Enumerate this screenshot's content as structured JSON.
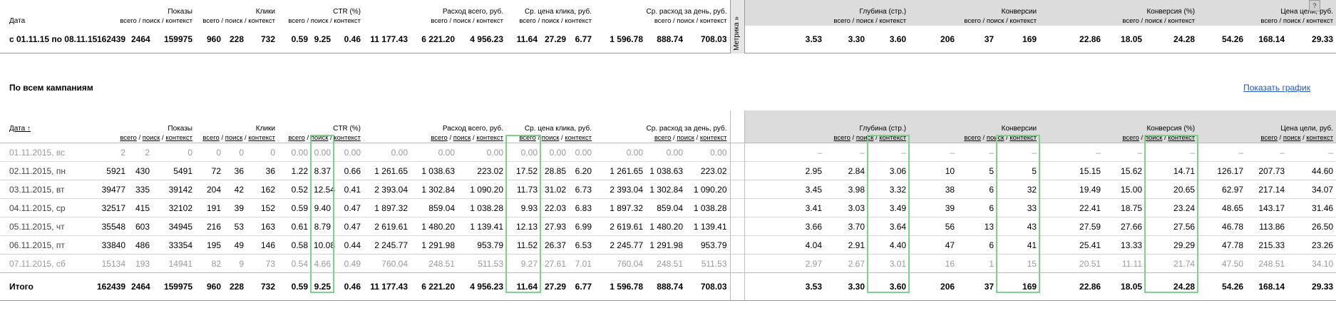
{
  "metrika_label": "Метрика »",
  "corner_label": "?",
  "top": {
    "headers": [
      {
        "l": "Дата",
        "s": []
      },
      {
        "l": "Показы",
        "s": [
          "всего",
          "поиск",
          "контекст"
        ]
      },
      {
        "l": "Клики",
        "s": [
          "всего",
          "поиск",
          "контекст"
        ]
      },
      {
        "l": "CTR (%)",
        "s": [
          "всего",
          "поиск",
          "контекст"
        ]
      },
      {
        "l": "Расход всего, руб.",
        "s": [
          "всего",
          "поиск",
          "контекст"
        ]
      },
      {
        "l": "Ср. цена клика, руб.",
        "s": [
          "всего",
          "поиск",
          "контекст"
        ]
      },
      {
        "l": "Ср. расход за день, руб.",
        "s": [
          "всего",
          "поиск",
          "контекст"
        ]
      },
      {
        "l": "Глубина (стр.)",
        "s": [
          "всего",
          "поиск",
          "контекст"
        ]
      },
      {
        "l": "Конверсии",
        "s": [
          "всего",
          "поиск",
          "контекст"
        ]
      },
      {
        "l": "Конверсия (%)",
        "s": [
          "всего",
          "поиск",
          "контекст"
        ]
      },
      {
        "l": "Цена цели, руб.",
        "s": [
          "всего",
          "поиск",
          "контекст"
        ]
      }
    ],
    "summary": {
      "label": "с 01.11.15 по 08.11.15",
      "values": [
        "162439",
        "2464",
        "159975",
        "960",
        "228",
        "732",
        "0.59",
        "9.25",
        "0.46",
        "11 177.43",
        "6 221.20",
        "4 956.23",
        "11.64",
        "27.29",
        "6.77",
        "1 596.78",
        "888.74",
        "708.03",
        "3.53",
        "3.30",
        "3.60",
        "206",
        "37",
        "169",
        "22.86",
        "18.05",
        "24.28",
        "54.26",
        "168.14",
        "29.33"
      ]
    }
  },
  "section_title": "По всем кампаниям",
  "chart_link": "Показать график",
  "main": {
    "headers": [
      {
        "l": "Дата ↑",
        "s": []
      },
      {
        "l": "Показы",
        "s": [
          "всего",
          "поиск",
          "контекст"
        ]
      },
      {
        "l": "Клики",
        "s": [
          "всего",
          "поиск",
          "контекст"
        ]
      },
      {
        "l": "CTR (%)",
        "s": [
          "всего",
          "поиск",
          "контекст"
        ]
      },
      {
        "l": "Расход всего, руб.",
        "s": [
          "всего",
          "поиск",
          "контекст"
        ]
      },
      {
        "l": "Ср. цена клика, руб.",
        "s": [
          "всего",
          "поиск",
          "контекст"
        ]
      },
      {
        "l": "Ср. расход за день, руб.",
        "s": [
          "всего",
          "поиск",
          "контекст"
        ]
      },
      {
        "l": "Глубина (стр.)",
        "s": [
          "всего",
          "поиск",
          "контекст"
        ]
      },
      {
        "l": "Конверсии",
        "s": [
          "всего",
          "поиск",
          "контекст"
        ]
      },
      {
        "l": "Конверсия (%)",
        "s": [
          "всего",
          "поиск",
          "контекст"
        ]
      },
      {
        "l": "Цена цели, руб.",
        "s": [
          "всего",
          "поиск",
          "контекст"
        ]
      }
    ],
    "rows": [
      {
        "date": "01.11.2015, вс",
        "weekend": true,
        "values": [
          "2",
          "2",
          "0",
          "0",
          "0",
          "0",
          "0.00",
          "0.00",
          "0.00",
          "0.00",
          "0.00",
          "0.00",
          "0.00",
          "0.00",
          "0.00",
          "0.00",
          "0.00",
          "0.00",
          "–",
          "–",
          "–",
          "–",
          "–",
          "–",
          "–",
          "–",
          "–",
          "–",
          "–",
          "–"
        ]
      },
      {
        "date": "02.11.2015, пн",
        "weekend": false,
        "values": [
          "5921",
          "430",
          "5491",
          "72",
          "36",
          "36",
          "1.22",
          "8.37",
          "0.66",
          "1 261.65",
          "1 038.63",
          "223.02",
          "17.52",
          "28.85",
          "6.20",
          "1 261.65",
          "1 038.63",
          "223.02",
          "2.95",
          "2.84",
          "3.06",
          "10",
          "5",
          "5",
          "15.15",
          "15.62",
          "14.71",
          "126.17",
          "207.73",
          "44.60"
        ]
      },
      {
        "date": "03.11.2015, вт",
        "weekend": false,
        "values": [
          "39477",
          "335",
          "39142",
          "204",
          "42",
          "162",
          "0.52",
          "12.54",
          "0.41",
          "2 393.04",
          "1 302.84",
          "1 090.20",
          "11.73",
          "31.02",
          "6.73",
          "2 393.04",
          "1 302.84",
          "1 090.20",
          "3.45",
          "3.98",
          "3.32",
          "38",
          "6",
          "32",
          "19.49",
          "15.00",
          "20.65",
          "62.97",
          "217.14",
          "34.07"
        ]
      },
      {
        "date": "04.11.2015, ср",
        "weekend": false,
        "values": [
          "32517",
          "415",
          "32102",
          "191",
          "39",
          "152",
          "0.59",
          "9.40",
          "0.47",
          "1 897.32",
          "859.04",
          "1 038.28",
          "9.93",
          "22.03",
          "6.83",
          "1 897.32",
          "859.04",
          "1 038.28",
          "3.41",
          "3.03",
          "3.49",
          "39",
          "6",
          "33",
          "22.41",
          "18.75",
          "23.24",
          "48.65",
          "143.17",
          "31.46"
        ]
      },
      {
        "date": "05.11.2015, чт",
        "weekend": false,
        "values": [
          "35548",
          "603",
          "34945",
          "216",
          "53",
          "163",
          "0.61",
          "8.79",
          "0.47",
          "2 619.61",
          "1 480.20",
          "1 139.41",
          "12.13",
          "27.93",
          "6.99",
          "2 619.61",
          "1 480.20",
          "1 139.41",
          "3.66",
          "3.70",
          "3.64",
          "56",
          "13",
          "43",
          "27.59",
          "27.66",
          "27.56",
          "46.78",
          "113.86",
          "26.50"
        ]
      },
      {
        "date": "06.11.2015, пт",
        "weekend": false,
        "values": [
          "33840",
          "486",
          "33354",
          "195",
          "49",
          "146",
          "0.58",
          "10.08",
          "0.44",
          "2 245.77",
          "1 291.98",
          "953.79",
          "11.52",
          "26.37",
          "6.53",
          "2 245.77",
          "1 291.98",
          "953.79",
          "4.04",
          "2.91",
          "4.40",
          "47",
          "6",
          "41",
          "25.41",
          "13.33",
          "29.29",
          "47.78",
          "215.33",
          "23.26"
        ]
      },
      {
        "date": "07.11.2015, сб",
        "weekend": true,
        "values": [
          "15134",
          "193",
          "14941",
          "82",
          "9",
          "73",
          "0.54",
          "4.66",
          "0.49",
          "760.04",
          "248.51",
          "511.53",
          "9.27",
          "27.61",
          "7.01",
          "760.04",
          "248.51",
          "511.53",
          "2.97",
          "2.67",
          "3.01",
          "16",
          "1",
          "15",
          "20.51",
          "11.11",
          "21.74",
          "47.50",
          "248.51",
          "34.10"
        ]
      }
    ],
    "total": {
      "label": "Итого",
      "values": [
        "162439",
        "2464",
        "159975",
        "960",
        "228",
        "732",
        "0.59",
        "9.25",
        "0.46",
        "11 177.43",
        "6 221.20",
        "4 956.23",
        "11.64",
        "27.29",
        "6.77",
        "1 596.78",
        "888.74",
        "708.03",
        "3.53",
        "3.30",
        "3.60",
        "206",
        "37",
        "169",
        "22.86",
        "18.05",
        "24.28",
        "54.26",
        "168.14",
        "29.33"
      ]
    }
  },
  "highlight_color": "#7ed38a"
}
